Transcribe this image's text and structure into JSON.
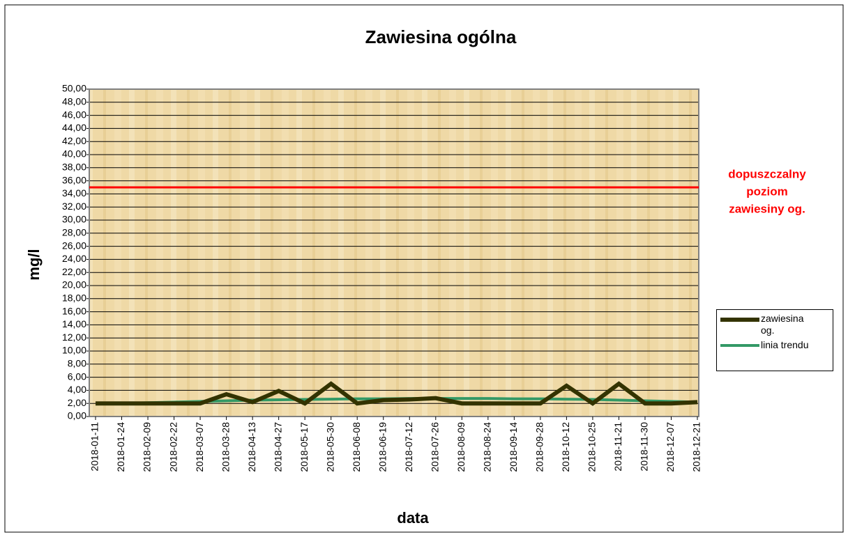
{
  "chart_data": {
    "type": "line",
    "title": "Zawiesina ogólna",
    "xlabel": "data",
    "ylabel": "mg/l",
    "categories": [
      "2018-01-11",
      "2018-01-24",
      "2018-02-09",
      "2018-02-22",
      "2018-03-07",
      "2018-03-28",
      "2018-04-13",
      "2018-04-27",
      "2018-05-17",
      "2018-05-30",
      "2018-06-08",
      "2018-06-19",
      "2018-07-12",
      "2018-07-26",
      "2018-08-09",
      "2018-08-24",
      "2018-09-14",
      "2018-09-28",
      "2018-10-12",
      "2018-10-25",
      "2018-11-21",
      "2018-11-30",
      "2018-12-07",
      "2018-12-21"
    ],
    "series": [
      {
        "name": "zawiesina og.",
        "color": "#333300",
        "values": [
          2.0,
          2.0,
          2.0,
          2.0,
          2.0,
          3.4,
          2.2,
          3.9,
          2.0,
          5.0,
          2.0,
          2.5,
          2.6,
          2.8,
          2.0,
          2.0,
          2.0,
          2.0,
          4.7,
          2.0,
          5.0,
          2.0,
          2.0,
          2.2
        ]
      },
      {
        "name": "linia trendu",
        "color": "#339966",
        "values": [
          1.9,
          2.0,
          2.1,
          2.2,
          2.3,
          2.4,
          2.5,
          2.55,
          2.6,
          2.65,
          2.7,
          2.7,
          2.75,
          2.75,
          2.75,
          2.75,
          2.7,
          2.7,
          2.65,
          2.6,
          2.5,
          2.4,
          2.3,
          2.2
        ]
      }
    ],
    "threshold": {
      "value": 35,
      "color": "#ff0000",
      "label": [
        "dopuszczalny",
        "poziom",
        "zawiesiny og."
      ]
    },
    "ylim": [
      0,
      50
    ],
    "yticks": [
      {
        "value": 0,
        "label": "0,00"
      },
      {
        "value": 2,
        "label": "2,00"
      },
      {
        "value": 4,
        "label": "4,00"
      },
      {
        "value": 6,
        "label": "6,00"
      },
      {
        "value": 8,
        "label": "8,00"
      },
      {
        "value": 10,
        "label": "10,00"
      },
      {
        "value": 12,
        "label": "12,00"
      },
      {
        "value": 14,
        "label": "14,00"
      },
      {
        "value": 16,
        "label": "16,00"
      },
      {
        "value": 18,
        "label": "18,00"
      },
      {
        "value": 20,
        "label": "20,00"
      },
      {
        "value": 22,
        "label": "22,00"
      },
      {
        "value": 24,
        "label": "24,00"
      },
      {
        "value": 26,
        "label": "26,00"
      },
      {
        "value": 28,
        "label": "28,00"
      },
      {
        "value": 30,
        "label": "30,00"
      },
      {
        "value": 32,
        "label": "32,00"
      },
      {
        "value": 34,
        "label": "34,00"
      },
      {
        "value": 36,
        "label": "36,00"
      },
      {
        "value": 38,
        "label": "38,00"
      },
      {
        "value": 40,
        "label": "40,00"
      },
      {
        "value": 42,
        "label": "42,00"
      },
      {
        "value": 44,
        "label": "44,00"
      },
      {
        "value": 46,
        "label": "46,00"
      },
      {
        "value": 48,
        "label": "48,00"
      },
      {
        "value": 50,
        "label": "50,00"
      }
    ],
    "grid": true,
    "legend": "right"
  }
}
